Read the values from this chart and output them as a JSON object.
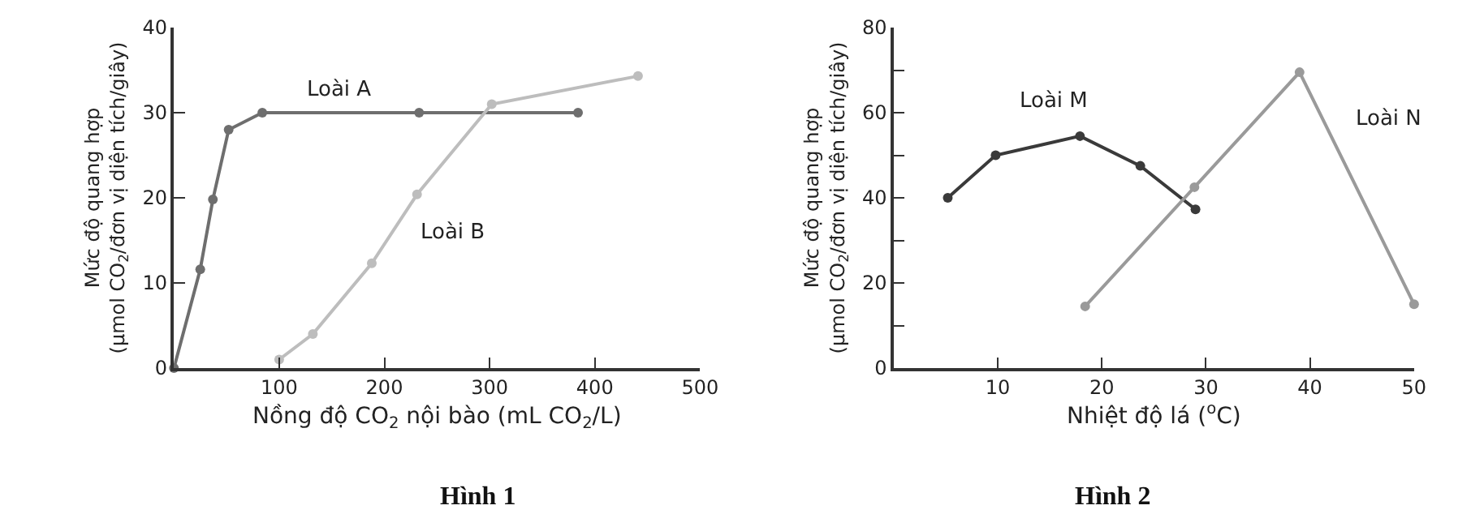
{
  "chart_data": [
    {
      "type": "line",
      "xlabel": "Nồng độ CO$_{2}$ nội bào (mL CO$_{2}$/L)",
      "ylabel": "Mức độ quang hợp\n(µmol CO$_{2}$/đơn vị diện tích/giây)",
      "series": [
        {
          "name": "Loài A",
          "color": "#6e6e6e",
          "x": [
            0,
            25,
            37,
            52,
            84,
            233,
            384
          ],
          "values": [
            0,
            11.6,
            19.8,
            28,
            30,
            30,
            30
          ]
        },
        {
          "name": "Loài B",
          "color": "#bdbdbd",
          "x": [
            100,
            132,
            188,
            231,
            302,
            441
          ],
          "values": [
            1,
            4,
            12.3,
            20.4,
            31,
            34.3
          ]
        }
      ],
      "xlim": [
        0,
        500
      ],
      "xticks": [
        {
          "value": 0,
          "label": null
        },
        100,
        200,
        300,
        400,
        500
      ],
      "ylim": [
        0,
        40
      ],
      "yticks": [
        0,
        10,
        20,
        30,
        40
      ],
      "legend": false,
      "marker": "circle",
      "line_style": "solid",
      "annotations": [
        "Hình 1"
      ]
    },
    {
      "type": "line",
      "xlabel": "Nhiệt độ lá ($^{o}$C)",
      "ylabel": "Mức độ quang hợp\n(µmol CO$_{2}$/đơn vị diện tích/giây)",
      "series": [
        {
          "name": "Loài M",
          "color": "#3a3a3a",
          "x": [
            5.2,
            9.8,
            17.9,
            23.7,
            29
          ],
          "values": [
            40,
            50,
            54.5,
            47.5,
            37.3
          ]
        },
        {
          "name": "Loài N",
          "color": "#9a9a9a",
          "x": [
            18.4,
            28.9,
            39,
            50
          ],
          "values": [
            14.5,
            42.5,
            69.5,
            15
          ]
        }
      ],
      "xlim": [
        0,
        50
      ],
      "xticks": [
        {
          "value": 0,
          "label": null
        },
        10,
        20,
        30,
        40,
        50
      ],
      "ylim": [
        0,
        80
      ],
      "yticks": [
        0,
        {
          "value": 10,
          "label": null
        },
        20,
        {
          "value": 30,
          "label": null
        },
        40,
        {
          "value": 50,
          "label": null
        },
        60,
        {
          "value": 70,
          "label": null
        },
        80
      ],
      "legend": false,
      "marker": "circle",
      "line_style": "solid",
      "annotations": [
        "Hình 2"
      ]
    }
  ]
}
